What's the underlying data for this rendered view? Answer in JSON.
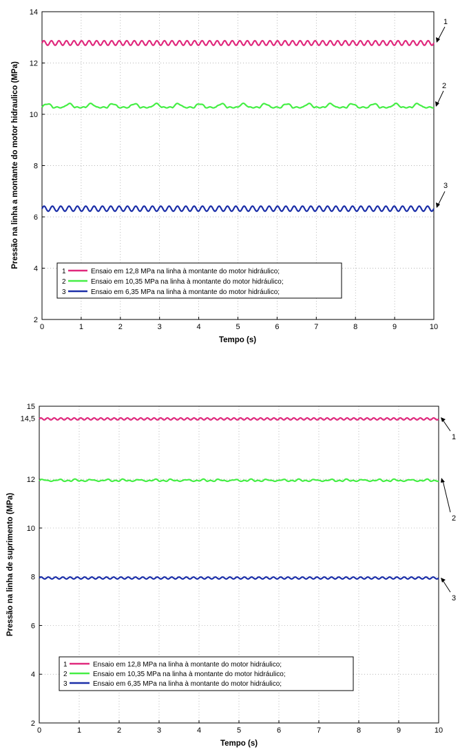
{
  "chart_data": [
    {
      "type": "line",
      "xlabel": "Tempo (s)",
      "ylabel": "Pressão na linha a montante do motor hidraulico (MPa)",
      "xlim": [
        0,
        10
      ],
      "ylim": [
        2,
        14
      ],
      "xticks": [
        "0",
        "1",
        "2",
        "3",
        "4",
        "5",
        "6",
        "7",
        "8",
        "9",
        "10"
      ],
      "yticks": [
        "2",
        "4",
        "6",
        "8",
        "10",
        "12",
        "14"
      ],
      "grid": true,
      "legend_position": "bottom-left",
      "series": [
        {
          "name": "Ensaio em 12,8 MPa na linha à montante do motor hidráulico;",
          "number": "1",
          "color": "#e0287c",
          "mean": 12.78,
          "amplitude": 0.09,
          "oscillations": 52
        },
        {
          "name": "Ensaio em 10,35 MPa na linha à montante do motor hidráulico;",
          "number": "2",
          "color": "#44ee44",
          "mean": 10.3,
          "amplitude": 0.1,
          "oscillations": 18
        },
        {
          "name": "Ensaio em 6,35 MPa na linha à montante do motor hidráulico;",
          "number": "3",
          "color": "#1a2ea8",
          "mean": 6.32,
          "amplitude": 0.1,
          "oscillations": 47
        }
      ],
      "annotations": [
        "1",
        "2",
        "3"
      ]
    },
    {
      "type": "line",
      "xlabel": "Tempo (s)",
      "ylabel": "Pressão na linha de suprimento (MPa)",
      "xlim": [
        0,
        10
      ],
      "ylim": [
        2,
        15
      ],
      "xticks": [
        "0",
        "1",
        "2",
        "3",
        "4",
        "5",
        "6",
        "7",
        "8",
        "9",
        "10"
      ],
      "yticks": [
        "2",
        "4",
        "6",
        "8",
        "10",
        "12",
        "14,5",
        "15"
      ],
      "ytick_values": [
        2,
        4,
        6,
        8,
        10,
        12,
        14.5,
        15
      ],
      "grid": true,
      "legend_position": "bottom-left",
      "series": [
        {
          "name": "Ensaio em 12,8 MPa na linha à montante do motor hidráulico;",
          "number": "1",
          "color": "#e0287c",
          "mean": 14.48,
          "amplitude": 0.04,
          "oscillations": 60
        },
        {
          "name": "Ensaio em 10,35 MPa na linha à montante do motor hidráulico;",
          "number": "2",
          "color": "#44ee44",
          "mean": 11.95,
          "amplitude": 0.04,
          "oscillations": 25
        },
        {
          "name": "Ensaio em 6,35 MPa na linha à montante do motor hidráulico;",
          "number": "3",
          "color": "#1a2ea8",
          "mean": 7.95,
          "amplitude": 0.04,
          "oscillations": 55
        }
      ],
      "annotations": [
        "1",
        "2",
        "3"
      ]
    }
  ]
}
